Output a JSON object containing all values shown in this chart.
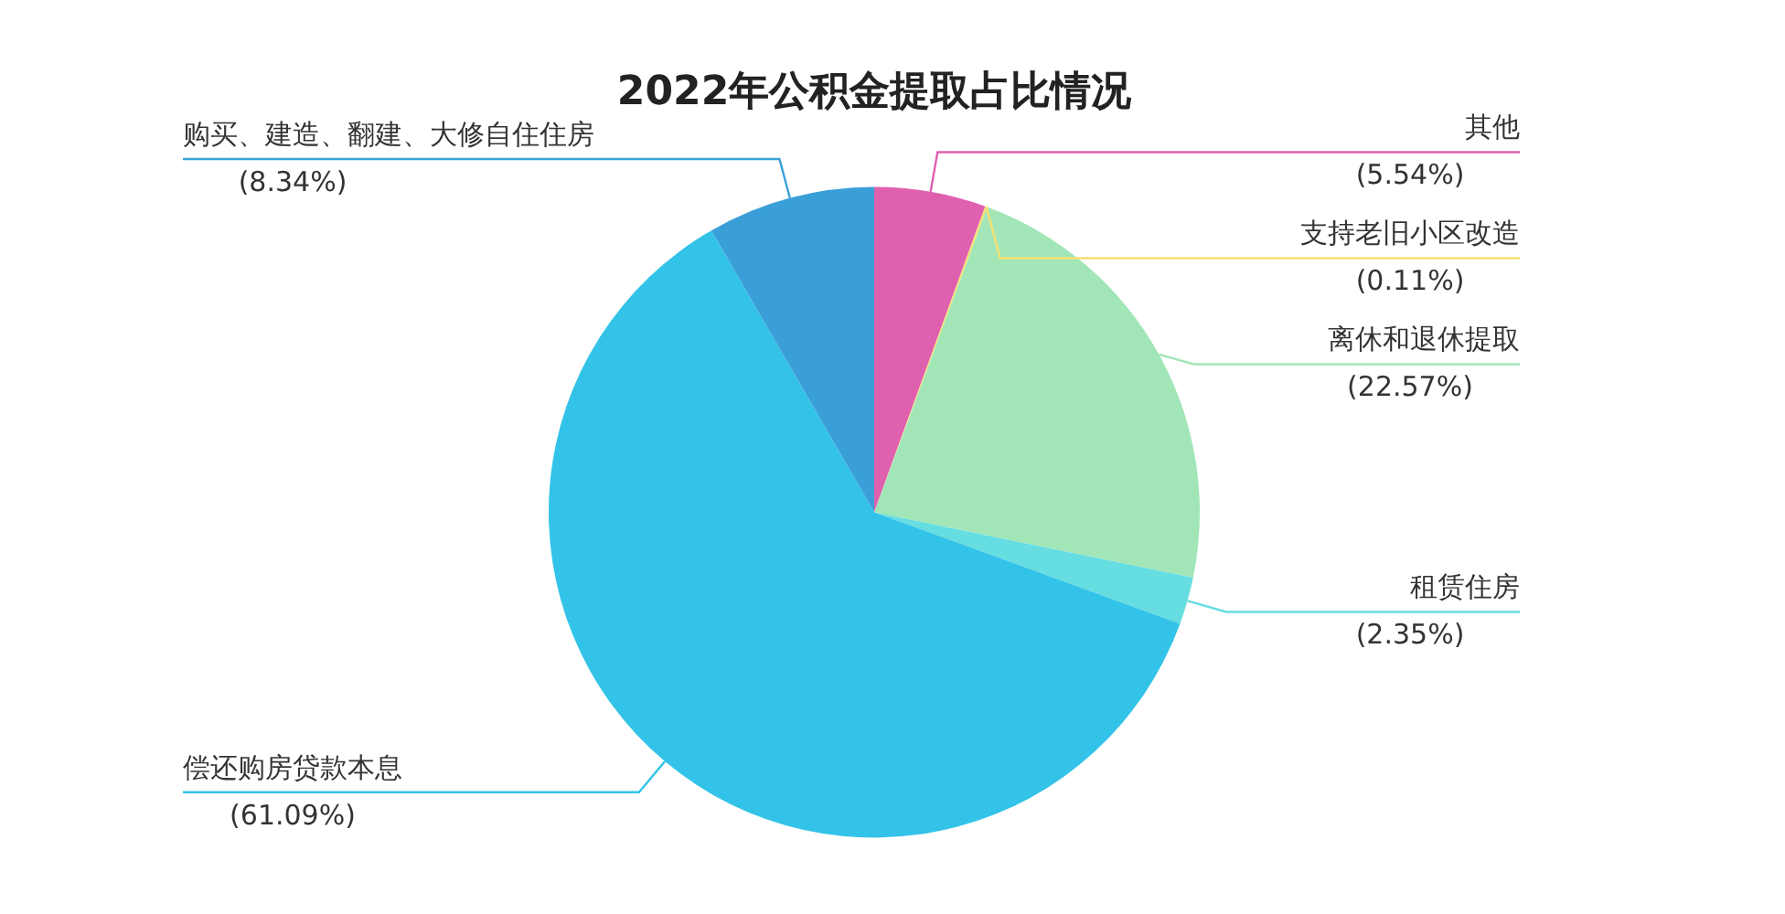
{
  "chart_data": {
    "type": "pie",
    "title": "2022年公积金提取占比情况",
    "categories": [
      "其他",
      "支持老旧小区改造",
      "离休和退休提取",
      "租赁住房",
      "偿还购房贷款本息",
      "购买、建造、翻建、大修自住住房"
    ],
    "values": [
      5.54,
      0.11,
      22.57,
      2.35,
      61.09,
      8.34
    ],
    "value_labels": [
      "(5.54%)",
      "(0.11%)",
      "(22.57%)",
      "(2.35%)",
      "(61.09%)",
      "(8.34%)"
    ],
    "colors": [
      "#e060b0",
      "#f5e070",
      "#a2e6b8",
      "#66dde0",
      "#33c3e8",
      "#3a9fd8"
    ],
    "legend": false
  }
}
